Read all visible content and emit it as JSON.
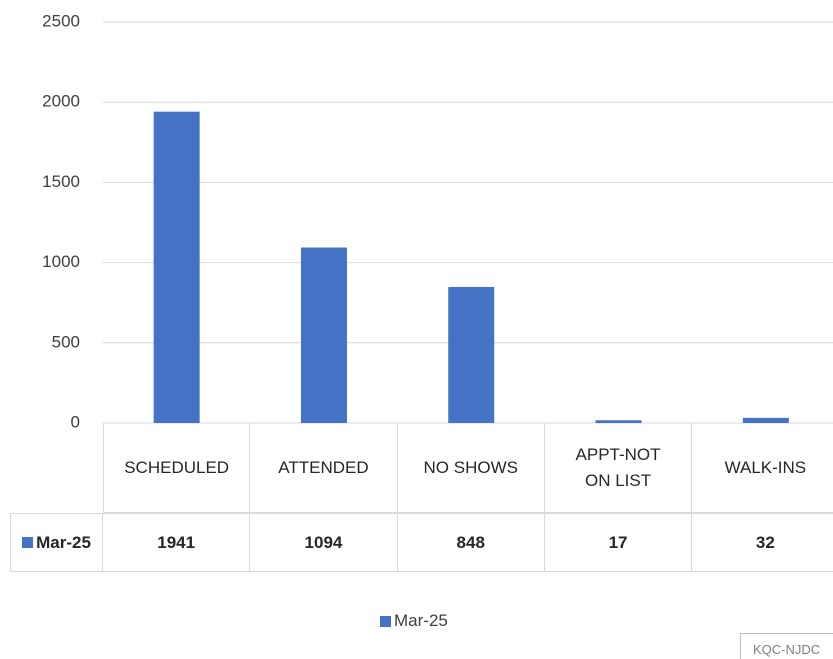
{
  "chart_data": {
    "type": "bar",
    "categories": [
      "SCHEDULED",
      "ATTENDED",
      "NO SHOWS",
      "APPT-NOT ON LIST",
      "WALK-INS"
    ],
    "series": [
      {
        "name": "Mar-25",
        "color": "#4472c4",
        "values": [
          1941,
          1094,
          848,
          17,
          32
        ]
      }
    ],
    "ylim": [
      0,
      2500
    ],
    "yticks": [
      0,
      500,
      1000,
      1500,
      2000,
      2500
    ],
    "grid": true,
    "legend": "bottom",
    "watermark": "KQC-NJDC"
  }
}
